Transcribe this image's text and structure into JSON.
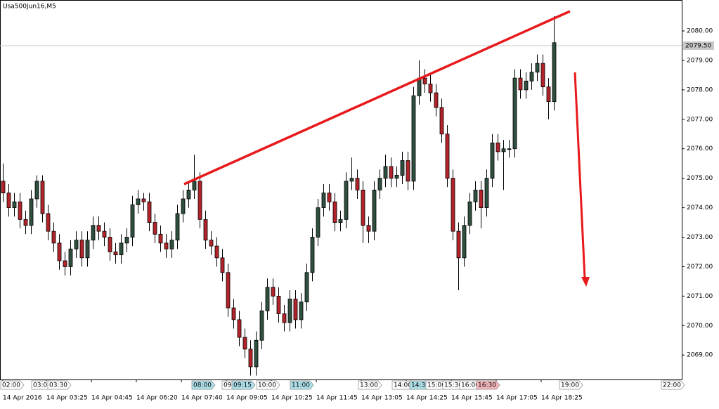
{
  "chart_data": {
    "type": "candlestick",
    "title": "Usa500Jun16,M5",
    "up_color": "#2f4f3f",
    "down_color": "#b3232a",
    "open": [
      2074.9,
      2074.5,
      2074.0,
      2074.2,
      2073.6,
      2073.4,
      2074.3,
      2074.9,
      2073.8,
      2073.2,
      2072.8,
      2072.2,
      2072.0,
      2072.6,
      2072.9,
      2072.3,
      2072.9,
      2073.4,
      2073.2,
      2073.0,
      2072.5,
      2072.4,
      2072.8,
      2073.0,
      2074.1,
      2074.3,
      2074.2,
      2073.5,
      2073.1,
      2072.8,
      2072.6,
      2072.9,
      2073.8,
      2074.3,
      2074.6,
      2074.9,
      2073.6,
      2072.9,
      2072.7,
      2072.3,
      2071.8,
      2070.6,
      2070.2,
      2069.6,
      2069.2,
      2068.6,
      2069.5,
      2070.5,
      2071.3,
      2071.0,
      2070.4,
      2070.1,
      2070.9,
      2070.2,
      2070.8,
      2071.8,
      2073.0,
      2074.0,
      2074.5,
      2074.2,
      2073.5,
      2073.6,
      2074.9,
      2075.0,
      2074.6,
      2073.4,
      2073.2,
      2074.6,
      2075.0,
      2075.4,
      2075.0,
      2075.1,
      2075.6,
      2074.9,
      2077.8,
      2078.4,
      2078.2,
      2077.9,
      2077.4,
      2076.5,
      2075.0,
      2073.2,
      2072.3,
      2073.4,
      2074.2,
      2074.6,
      2074.0,
      2075.0,
      2076.2,
      2075.9,
      2076.0,
      2076.0,
      2078.4,
      2078.0,
      2078.3,
      2078.6,
      2078.9,
      2078.1,
      2077.6
    ],
    "high": [
      2075.5,
      2074.8,
      2074.5,
      2074.5,
      2073.9,
      2074.6,
      2075.1,
      2075.1,
      2074.1,
      2073.5,
      2073.1,
      2072.5,
      2072.9,
      2073.2,
      2073.2,
      2073.2,
      2073.7,
      2073.7,
      2073.5,
      2073.3,
      2072.8,
      2073.1,
      2073.3,
      2074.4,
      2074.6,
      2074.5,
      2074.5,
      2073.8,
      2073.4,
      2073.1,
      2073.2,
      2074.1,
      2074.6,
      2074.9,
      2075.8,
      2075.2,
      2073.9,
      2073.2,
      2073.0,
      2072.6,
      2072.1,
      2070.9,
      2070.5,
      2069.9,
      2069.5,
      2069.8,
      2070.8,
      2071.6,
      2071.6,
      2071.3,
      2070.7,
      2071.2,
      2071.2,
      2071.1,
      2072.1,
      2073.3,
      2074.3,
      2074.8,
      2074.8,
      2074.5,
      2073.9,
      2075.2,
      2075.7,
      2075.3,
      2074.9,
      2073.7,
      2074.9,
      2075.3,
      2075.8,
      2075.7,
      2075.4,
      2075.9,
      2075.9,
      2078.1,
      2079.0,
      2078.7,
      2078.5,
      2078.2,
      2077.7,
      2076.8,
      2075.3,
      2073.5,
      2073.7,
      2074.5,
      2074.9,
      2074.9,
      2075.3,
      2076.5,
      2076.5,
      2076.3,
      2076.3,
      2078.7,
      2078.7,
      2078.6,
      2078.9,
      2079.2,
      2079.2,
      2078.4,
      2080.5
    ],
    "low": [
      2074.2,
      2073.7,
      2073.7,
      2073.3,
      2073.1,
      2073.1,
      2074.0,
      2073.5,
      2072.9,
      2072.5,
      2071.9,
      2071.7,
      2071.7,
      2072.3,
      2072.0,
      2072.0,
      2072.6,
      2072.9,
      2072.7,
      2072.2,
      2072.1,
      2072.1,
      2072.5,
      2072.7,
      2073.8,
      2073.9,
      2073.2,
      2072.8,
      2072.5,
      2072.3,
      2072.3,
      2072.6,
      2073.5,
      2074.0,
      2074.3,
      2073.3,
      2072.6,
      2072.4,
      2072.0,
      2071.5,
      2070.3,
      2069.9,
      2069.3,
      2068.9,
      2068.3,
      2068.3,
      2069.2,
      2070.2,
      2070.7,
      2070.1,
      2069.8,
      2069.8,
      2069.9,
      2069.9,
      2070.5,
      2071.5,
      2072.7,
      2073.7,
      2073.9,
      2073.2,
      2073.2,
      2073.3,
      2074.6,
      2074.3,
      2072.8,
      2072.8,
      2072.9,
      2074.3,
      2074.7,
      2074.7,
      2074.7,
      2074.8,
      2074.6,
      2074.6,
      2077.5,
      2077.9,
      2077.6,
      2077.1,
      2076.2,
      2074.7,
      2072.9,
      2071.2,
      2072.0,
      2073.1,
      2073.9,
      2073.3,
      2073.7,
      2074.7,
      2075.6,
      2074.6,
      2075.7,
      2075.7,
      2077.7,
      2077.7,
      2078.0,
      2078.3,
      2077.8,
      2077.0,
      2077.3
    ],
    "close": [
      2074.5,
      2074.0,
      2074.2,
      2073.6,
      2073.4,
      2074.3,
      2074.9,
      2073.8,
      2073.2,
      2072.8,
      2072.2,
      2072.0,
      2072.6,
      2072.9,
      2072.3,
      2072.9,
      2073.4,
      2073.2,
      2073.0,
      2072.5,
      2072.4,
      2072.8,
      2073.0,
      2074.1,
      2074.3,
      2074.2,
      2073.5,
      2073.1,
      2072.8,
      2072.6,
      2072.9,
      2073.8,
      2074.3,
      2074.6,
      2074.9,
      2073.6,
      2072.9,
      2072.7,
      2072.3,
      2071.8,
      2070.6,
      2070.2,
      2069.6,
      2069.2,
      2068.6,
      2069.5,
      2070.5,
      2071.3,
      2071.0,
      2070.4,
      2070.1,
      2070.9,
      2070.2,
      2070.8,
      2071.8,
      2073.0,
      2074.0,
      2074.5,
      2074.2,
      2073.5,
      2073.6,
      2074.9,
      2075.0,
      2074.6,
      2073.4,
      2073.2,
      2074.6,
      2075.0,
      2075.4,
      2075.0,
      2075.1,
      2075.6,
      2074.9,
      2077.8,
      2078.4,
      2078.2,
      2077.9,
      2077.4,
      2076.5,
      2075.0,
      2073.2,
      2072.3,
      2073.4,
      2074.2,
      2074.6,
      2074.0,
      2075.0,
      2076.2,
      2075.9,
      2076.0,
      2076.0,
      2078.4,
      2078.0,
      2078.3,
      2078.6,
      2078.9,
      2078.1,
      2077.6,
      2079.6
    ],
    "ylim": [
      2068.17,
      2081.05
    ],
    "yticks": [
      {
        "value": 2069,
        "label": "2069.00"
      },
      {
        "value": 2070,
        "label": "2070.00"
      },
      {
        "value": 2071,
        "label": "2071.00"
      },
      {
        "value": 2072,
        "label": "2072.00"
      },
      {
        "value": 2073,
        "label": "2073.00"
      },
      {
        "value": 2074,
        "label": "2074.00"
      },
      {
        "value": 2075,
        "label": "2075.00"
      },
      {
        "value": 2076,
        "label": "2076.00"
      },
      {
        "value": 2077,
        "label": "2077.00"
      },
      {
        "value": 2078,
        "label": "2078.00"
      },
      {
        "value": 2079,
        "label": "2079.00"
      },
      {
        "value": 2080,
        "label": "2080.00"
      }
    ],
    "current_price": {
      "value": 2079.5,
      "label": "2079.50"
    },
    "x_labels": [
      "14 Apr 2016",
      "14 Apr 03:25",
      "14 Apr 04:45",
      "14 Apr 06:20",
      "14 Apr 07:40",
      "14 Apr 09:05",
      "14 Apr 10:25",
      "14 Apr 11:45",
      "14 Apr 13:05",
      "14 Apr 14:25",
      "14 Apr 15:45",
      "14 Apr 17:05",
      "14 Apr 18:25"
    ],
    "time_markers": [
      "02:00",
      "03:00",
      "03:30",
      "08:00",
      "09:00",
      "09:15",
      "10:00",
      "11:00",
      "13:00",
      "14:00",
      "14:30",
      "15:00",
      "15:30",
      "16:00",
      "16:30",
      "19:00",
      "22:00"
    ]
  }
}
